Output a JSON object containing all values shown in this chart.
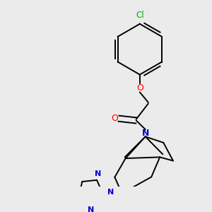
{
  "background_color": "#ebebeb",
  "atom_colors": {
    "C": "#000000",
    "N": "#0000cc",
    "O": "#ff0000",
    "Cl": "#00aa00"
  },
  "figsize": [
    3.0,
    3.0
  ],
  "dpi": 100
}
